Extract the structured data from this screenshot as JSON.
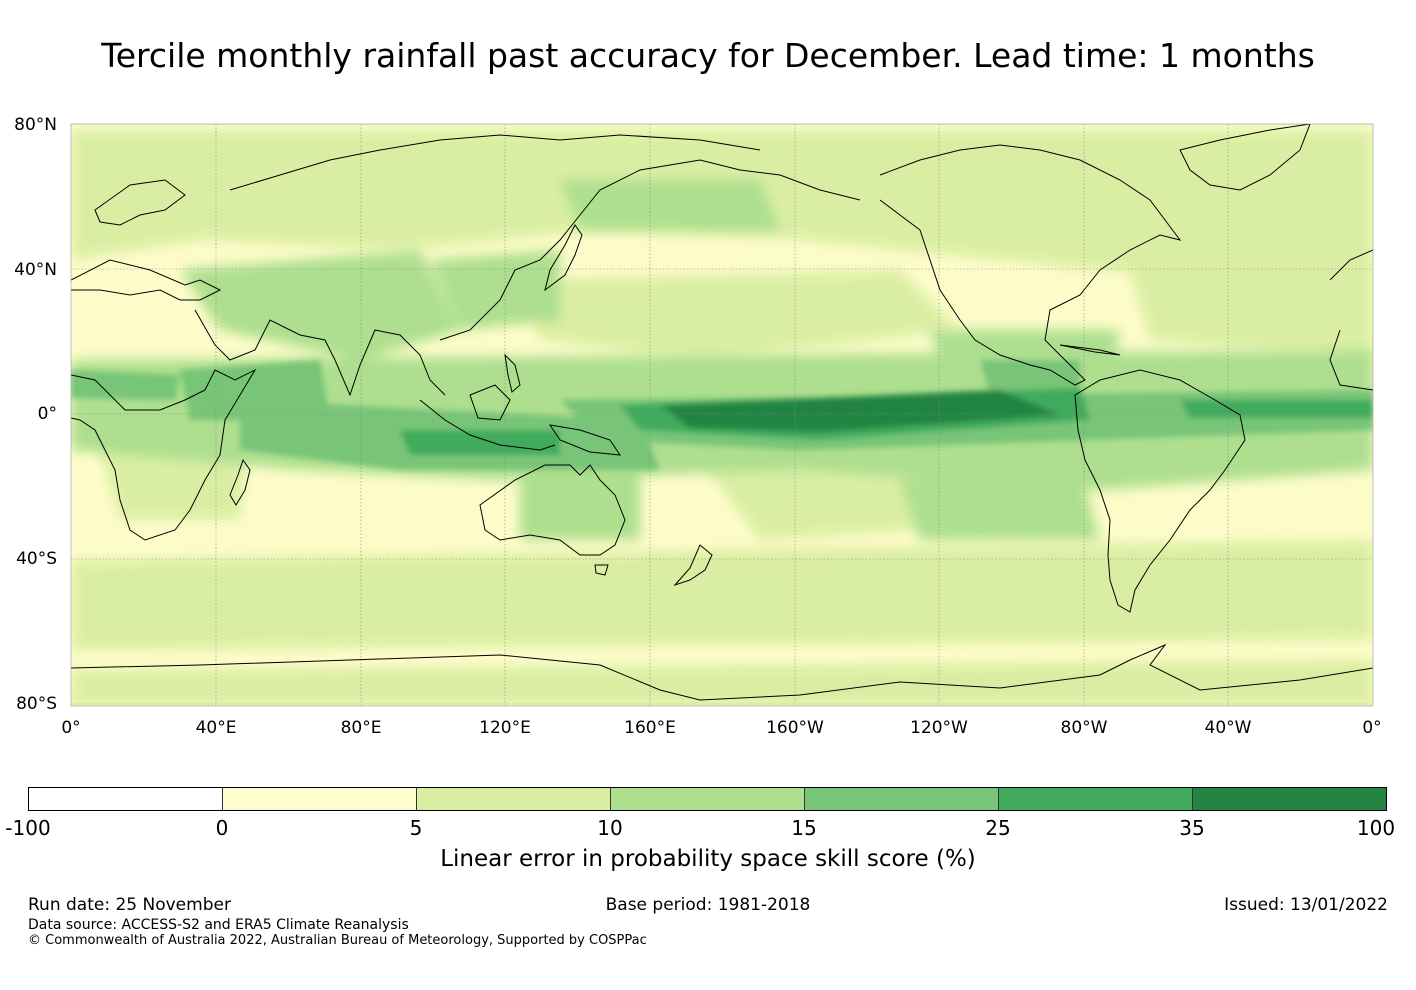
{
  "title": "Tercile monthly rainfall past accuracy for December. Lead time: 1 months",
  "map": {
    "lat_labels": [
      "80°N",
      "40°N",
      "0°",
      "40°S",
      "80°S"
    ],
    "lon_labels": [
      "0°",
      "40°E",
      "80°E",
      "120°E",
      "160°E",
      "160°W",
      "120°W",
      "80°W",
      "40°W",
      "0°"
    ],
    "background_color": "#fdfcc9",
    "coastline_color": "#000000"
  },
  "colorbar": {
    "ticks": [
      "-100",
      "0",
      "5",
      "10",
      "15",
      "25",
      "35",
      "100"
    ],
    "colors": [
      "#ffffff",
      "#fefdd0",
      "#d9eea1",
      "#addf8e",
      "#78c578",
      "#41ab5d",
      "#238443"
    ],
    "label": "Linear error in probability space skill score (%)"
  },
  "footer": {
    "run_date": "Run date: 25 November",
    "base_period": "Base period: 1981-2018",
    "issued": "Issued: 13/01/2022",
    "data_source": "Data source: ACCESS-S2 and ERA5 Climate Reanalysis",
    "copyright": "© Commonwealth of Australia 2022, Australian Bureau of Meteorology, Supported by COSPPac"
  }
}
